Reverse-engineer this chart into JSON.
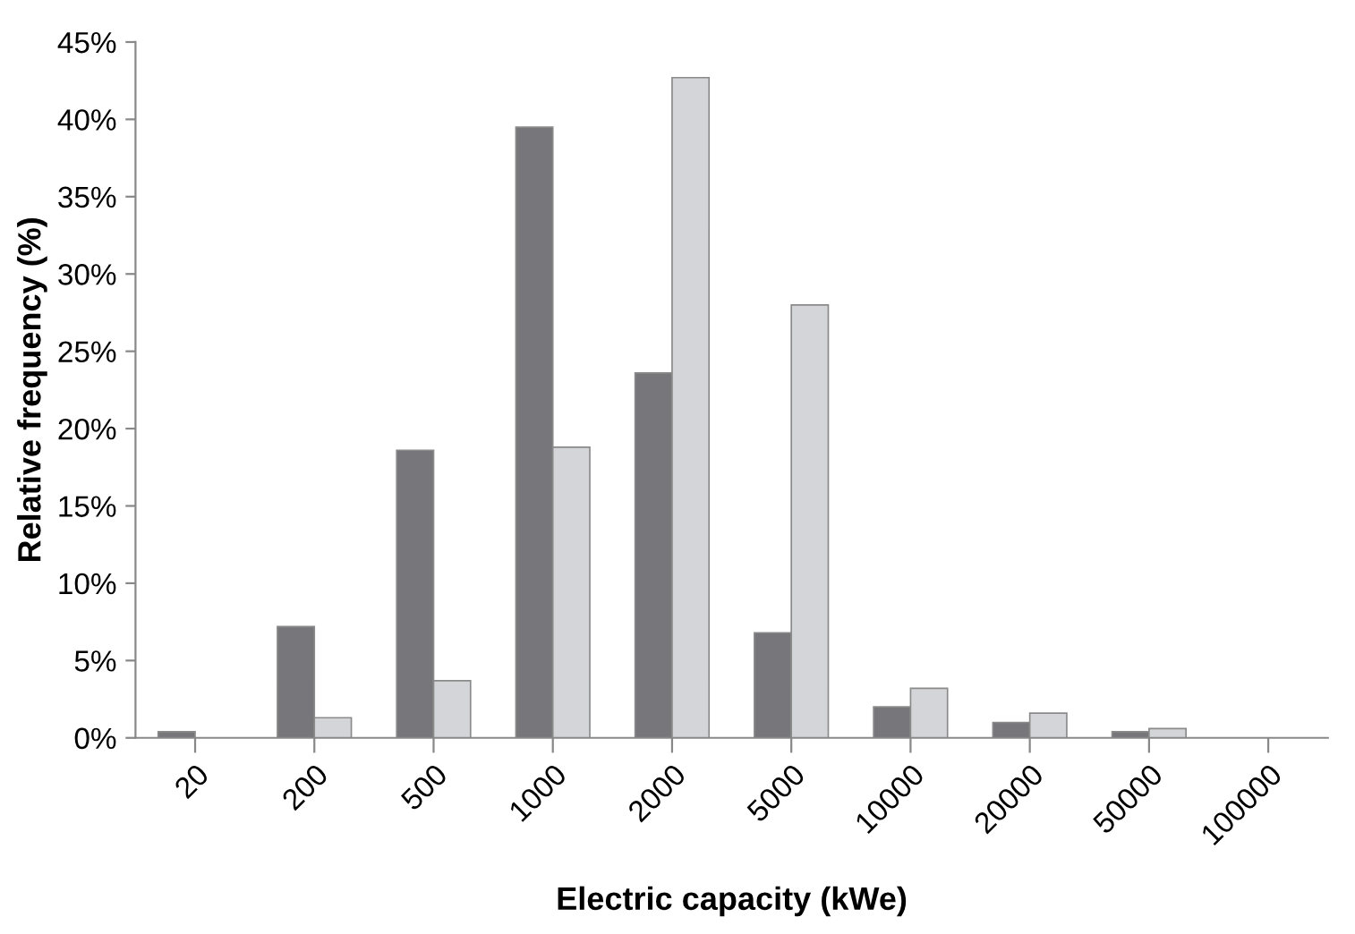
{
  "chart_data": {
    "type": "bar",
    "xlabel": "Electric capacity (kWe)",
    "ylabel": "Relative frequency (%)",
    "categories": [
      "20",
      "200",
      "500",
      "1000",
      "2000",
      "5000",
      "10000",
      "20000",
      "50000",
      "100000"
    ],
    "series": [
      {
        "color": "#77777b",
        "values": [
          0.4,
          7.2,
          18.6,
          39.5,
          23.6,
          6.8,
          2.0,
          1.0,
          0.4,
          0
        ]
      },
      {
        "color": "#d4d5d8",
        "values": [
          0,
          1.3,
          3.7,
          18.8,
          42.7,
          28.0,
          3.2,
          1.6,
          0.6,
          0
        ]
      }
    ],
    "ylim": [
      0,
      45
    ],
    "yticks": [
      {
        "value": 0,
        "label": "0%"
      },
      {
        "value": 5,
        "label": "5%"
      },
      {
        "value": 10,
        "label": "10%"
      },
      {
        "value": 15,
        "label": "15%"
      },
      {
        "value": 20,
        "label": "20%"
      },
      {
        "value": 25,
        "label": "25%"
      },
      {
        "value": 30,
        "label": "30%"
      },
      {
        "value": 35,
        "label": "35%"
      },
      {
        "value": 40,
        "label": "40%"
      },
      {
        "value": 45,
        "label": "45%"
      }
    ],
    "grid": false,
    "legend": false
  }
}
